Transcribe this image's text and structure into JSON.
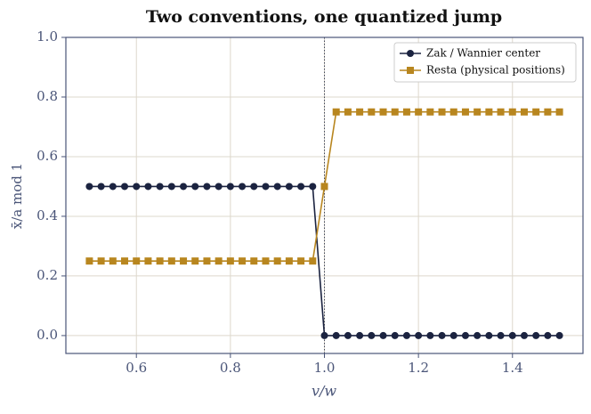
{
  "chart_data": {
    "type": "line",
    "title": "Two conventions, one quantized jump",
    "xlabel": "v/w",
    "ylabel": "x̄/a  mod 1",
    "x": [
      0.5,
      0.525,
      0.55,
      0.575,
      0.6,
      0.625,
      0.65,
      0.675,
      0.7,
      0.725,
      0.75,
      0.775,
      0.8,
      0.825,
      0.85,
      0.875,
      0.9,
      0.925,
      0.95,
      0.975,
      1.0,
      1.025,
      1.05,
      1.075,
      1.1,
      1.125,
      1.15,
      1.175,
      1.2,
      1.225,
      1.25,
      1.275,
      1.3,
      1.325,
      1.35,
      1.375,
      1.4,
      1.425,
      1.45,
      1.475,
      1.5
    ],
    "series": [
      {
        "name": "Zak / Wannier center",
        "color": "#1b2340",
        "marker": "circle",
        "values": [
          0.5,
          0.5,
          0.5,
          0.5,
          0.5,
          0.5,
          0.5,
          0.5,
          0.5,
          0.5,
          0.5,
          0.5,
          0.5,
          0.5,
          0.5,
          0.5,
          0.5,
          0.5,
          0.5,
          0.5,
          0,
          0,
          0,
          0,
          0,
          0,
          0,
          0,
          0,
          0,
          0,
          0,
          0,
          0,
          0,
          0,
          0,
          0,
          0,
          0,
          0
        ]
      },
      {
        "name": "Resta (physical positions)",
        "color": "#b8861f",
        "marker": "square",
        "values": [
          0.25,
          0.25,
          0.25,
          0.25,
          0.25,
          0.25,
          0.25,
          0.25,
          0.25,
          0.25,
          0.25,
          0.25,
          0.25,
          0.25,
          0.25,
          0.25,
          0.25,
          0.25,
          0.25,
          0.25,
          0.5,
          0.75,
          0.75,
          0.75,
          0.75,
          0.75,
          0.75,
          0.75,
          0.75,
          0.75,
          0.75,
          0.75,
          0.75,
          0.75,
          0.75,
          0.75,
          0.75,
          0.75,
          0.75,
          0.75,
          0.75
        ]
      }
    ],
    "vline": 1.0,
    "xlim": [
      0.45,
      1.55
    ],
    "ylim": [
      -0.06,
      1.0
    ],
    "xticks": [
      0.6,
      0.8,
      {
        "value": 1.0,
        "label": "1.0"
      },
      1.2,
      1.4
    ],
    "yticks": [
      {
        "value": 0,
        "label": "0.0"
      },
      0.2,
      0.4,
      0.6,
      0.8,
      {
        "value": 1.0,
        "label": "1.0"
      }
    ],
    "grid": true,
    "legend": "upper right"
  }
}
